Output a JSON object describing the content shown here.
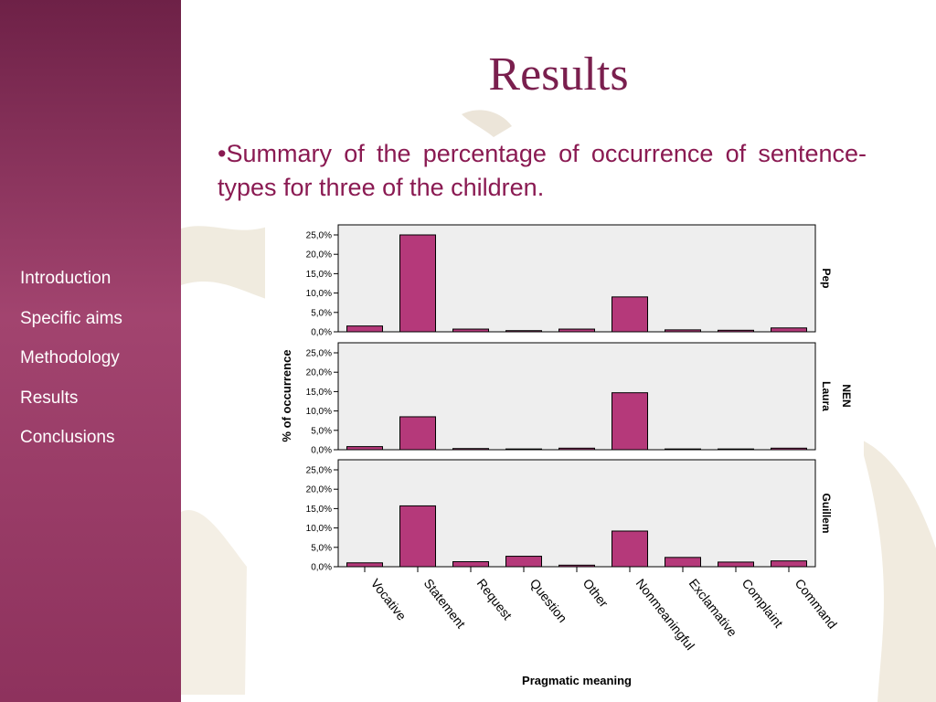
{
  "slide": {
    "title": "Results",
    "bullet": "•Summary of the percentage of occurrence of sentence-types for three of the children."
  },
  "nav": {
    "items": [
      {
        "label": "Introduction"
      },
      {
        "label": "Specific aims"
      },
      {
        "label": "Methodology"
      },
      {
        "label": "Results"
      },
      {
        "label": "Conclusions"
      }
    ]
  },
  "colors": {
    "bar": "#b5397a",
    "panel_bg": "#eeeeee",
    "sidebar": "#8e325d",
    "title": "#7a1f4e"
  },
  "chart_data": {
    "type": "bar",
    "xlabel": "Pragmatic meaning",
    "ylabel": "% of occurrence",
    "ylim": [
      0,
      25
    ],
    "yticks": [
      "0,0%",
      "5,0%",
      "10,0%",
      "15,0%",
      "20,0%",
      "25,0%"
    ],
    "categories": [
      "Vocative",
      "Statement",
      "Request",
      "Question",
      "Other",
      "Nonmeaningful",
      "Exclamative",
      "Complaint",
      "Command"
    ],
    "facet_header": "NEN",
    "grid": false,
    "series": [
      {
        "name": "Pep",
        "values": [
          1.5,
          25.0,
          0.7,
          0.3,
          0.7,
          9.0,
          0.5,
          0.4,
          1.0
        ]
      },
      {
        "name": "Laura",
        "values": [
          0.8,
          8.5,
          0.3,
          0.2,
          0.4,
          14.7,
          0.2,
          0.2,
          0.4
        ]
      },
      {
        "name": "Guillem",
        "values": [
          1.0,
          15.7,
          1.3,
          2.7,
          0.4,
          9.2,
          2.4,
          1.2,
          1.5
        ]
      }
    ]
  }
}
